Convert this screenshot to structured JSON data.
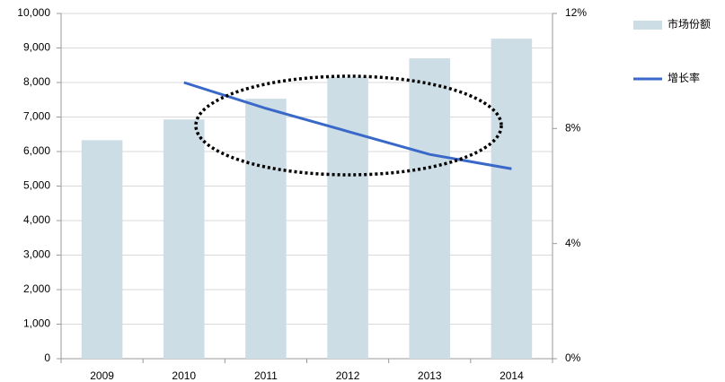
{
  "chart_data": {
    "type": "bar",
    "categories": [
      "2009",
      "2010",
      "2011",
      "2012",
      "2013",
      "2014"
    ],
    "series": [
      {
        "name": "市场份额",
        "color": "#cddde6",
        "values": [
          6330,
          6930,
          7530,
          8150,
          8700,
          9270
        ]
      },
      {
        "name": "增长率",
        "type": "line",
        "axis": "y2",
        "color": "#3a68c8",
        "values": [
          null,
          9.6,
          8.7,
          7.9,
          7.1,
          6.6
        ]
      }
    ],
    "ylim": [
      0,
      10000
    ],
    "yticks": [
      0,
      {
        "value": 1000,
        "label": "1,000"
      },
      {
        "value": 2000,
        "label": "2,000"
      },
      {
        "value": 3000,
        "label": "3,000"
      },
      {
        "value": 4000,
        "label": "4,000"
      },
      {
        "value": 5000,
        "label": "5,000"
      },
      {
        "value": 6000,
        "label": "6,000"
      },
      {
        "value": 7000,
        "label": "7,000"
      },
      {
        "value": 8000,
        "label": "8,000"
      },
      {
        "value": 9000,
        "label": "9,000"
      },
      {
        "value": 10000,
        "label": "10,000"
      }
    ],
    "y2lim": [
      0,
      12
    ],
    "y2ticks": [
      {
        "value": 0,
        "label": "0%"
      },
      {
        "value": 4,
        "label": "4%"
      },
      {
        "value": 8,
        "label": "8%"
      },
      {
        "value": 12,
        "label": "12%"
      }
    ],
    "grid": true,
    "legend": "right"
  }
}
